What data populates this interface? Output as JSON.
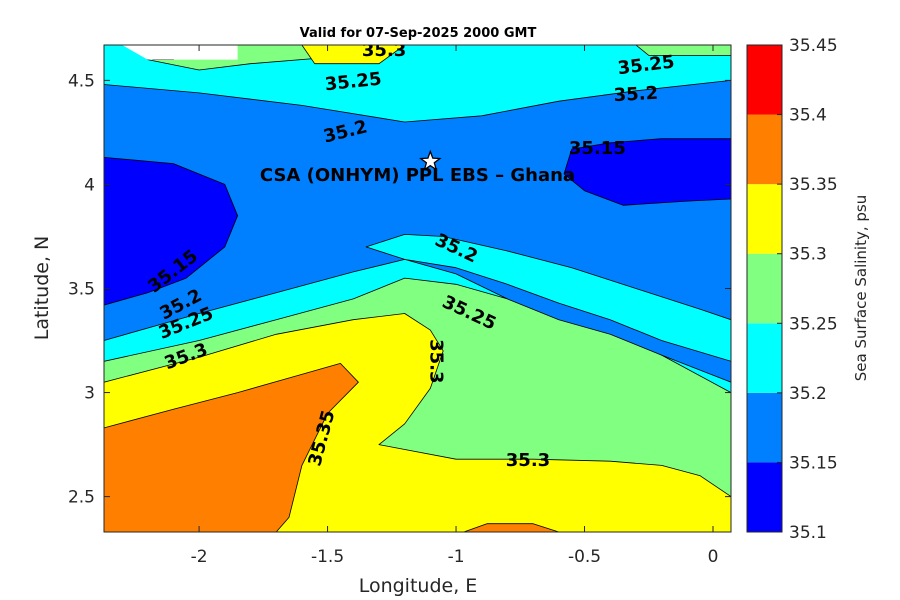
{
  "chart_data": {
    "type": "heatmap",
    "subtype": "filled-contour",
    "title": "Valid for 07-Sep-2025 2000 GMT",
    "xlabel": "Longitude, E",
    "ylabel": "Latitude, N",
    "xlim": [
      -2.37,
      0.07
    ],
    "ylim": [
      2.33,
      4.67
    ],
    "x_ticks": [
      -2,
      -1.5,
      -1,
      -0.5,
      0
    ],
    "x_tick_labels": [
      "-2",
      "-1.5",
      "-1",
      "-0.5",
      "0"
    ],
    "y_ticks": [
      2.5,
      3,
      3.5,
      4,
      4.5
    ],
    "y_tick_labels": [
      "2.5",
      "3",
      "3.5",
      "4",
      "4.5"
    ],
    "grid": false,
    "colorbar": {
      "label": "Sea Surface Salinity, psu",
      "ticks": [
        35.1,
        35.15,
        35.2,
        35.25,
        35.3,
        35.35,
        35.4,
        35.45
      ],
      "tick_labels": [
        "35.1",
        "35.15",
        "35.2",
        "35.25",
        "35.3",
        "35.35",
        "35.4",
        "35.45"
      ],
      "levels": [
        {
          "from": 35.1,
          "to": 35.15,
          "color": "#0000ff"
        },
        {
          "from": 35.15,
          "to": 35.2,
          "color": "#0080ff"
        },
        {
          "from": 35.2,
          "to": 35.25,
          "color": "#00ffff"
        },
        {
          "from": 35.25,
          "to": 35.3,
          "color": "#80ff80"
        },
        {
          "from": 35.3,
          "to": 35.35,
          "color": "#ffff00"
        },
        {
          "from": 35.35,
          "to": 35.4,
          "color": "#ff8000"
        },
        {
          "from": 35.4,
          "to": 35.45,
          "color": "#ff0000"
        }
      ]
    },
    "regions": [
      {
        "level": 35.2,
        "color": "#00ffff",
        "points": [
          [
            -2.37,
            4.67
          ],
          [
            0.07,
            4.67
          ],
          [
            0.07,
            2.33
          ],
          [
            -2.37,
            2.33
          ]
        ]
      },
      {
        "level": 35.25,
        "color": "#80ff80",
        "points": [
          [
            -2.2,
            4.67
          ],
          [
            -1.2,
            4.67
          ],
          [
            -1.4,
            4.62
          ],
          [
            -1.8,
            4.58
          ],
          [
            -2.0,
            4.55
          ],
          [
            -2.2,
            4.6
          ]
        ]
      },
      {
        "level": 35.25,
        "color": "#80ff80",
        "points": [
          [
            -0.3,
            4.67
          ],
          [
            0.07,
            4.67
          ],
          [
            0.07,
            4.62
          ],
          [
            -0.25,
            4.62
          ]
        ]
      },
      {
        "level": 35.25,
        "color": "#80ff80",
        "points": [
          [
            -2.37,
            3.15
          ],
          [
            -2.0,
            3.25
          ],
          [
            -1.7,
            3.35
          ],
          [
            -1.4,
            3.45
          ],
          [
            -1.2,
            3.55
          ],
          [
            -1.0,
            3.52
          ],
          [
            -0.8,
            3.45
          ],
          [
            -0.6,
            3.38
          ],
          [
            -0.4,
            3.3
          ],
          [
            -0.2,
            3.18
          ],
          [
            0.07,
            3.0
          ],
          [
            0.07,
            2.33
          ],
          [
            -2.37,
            2.33
          ]
        ]
      },
      {
        "level": 35.3,
        "color": "#ffff00",
        "points": [
          [
            -1.6,
            4.67
          ],
          [
            -1.2,
            4.67
          ],
          [
            -1.3,
            4.58
          ],
          [
            -1.55,
            4.58
          ]
        ]
      },
      {
        "level": 35.3,
        "color": "#ffff00",
        "points": [
          [
            -2.37,
            3.05
          ],
          [
            -2.0,
            3.17
          ],
          [
            -1.7,
            3.28
          ],
          [
            -1.4,
            3.35
          ],
          [
            -1.2,
            3.38
          ],
          [
            -1.1,
            3.3
          ],
          [
            -1.05,
            3.2
          ],
          [
            -1.1,
            3.02
          ],
          [
            -1.2,
            2.85
          ],
          [
            -1.3,
            2.75
          ],
          [
            -1.0,
            2.68
          ],
          [
            -0.7,
            2.68
          ],
          [
            -0.4,
            2.67
          ],
          [
            -0.2,
            2.65
          ],
          [
            -0.05,
            2.6
          ],
          [
            0.07,
            2.5
          ],
          [
            0.07,
            2.33
          ],
          [
            -2.37,
            2.33
          ]
        ]
      },
      {
        "level": 35.35,
        "color": "#ff8000",
        "points": [
          [
            -2.37,
            2.83
          ],
          [
            -2.1,
            2.92
          ],
          [
            -1.85,
            3.0
          ],
          [
            -1.65,
            3.07
          ],
          [
            -1.45,
            3.14
          ],
          [
            -1.38,
            3.05
          ],
          [
            -1.5,
            2.9
          ],
          [
            -1.6,
            2.65
          ],
          [
            -1.65,
            2.4
          ],
          [
            -1.7,
            2.33
          ],
          [
            -2.37,
            2.33
          ]
        ]
      },
      {
        "level": 35.35,
        "color": "#ff8000",
        "points": [
          [
            -0.97,
            2.33
          ],
          [
            -0.88,
            2.37
          ],
          [
            -0.7,
            2.37
          ],
          [
            -0.6,
            2.33
          ]
        ]
      },
      {
        "level": 35.15,
        "color": "#0080ff",
        "points": [
          [
            -2.37,
            4.48
          ],
          [
            -2.0,
            4.44
          ],
          [
            -1.6,
            4.38
          ],
          [
            -1.2,
            4.3
          ],
          [
            -0.9,
            4.33
          ],
          [
            -0.6,
            4.4
          ],
          [
            -0.3,
            4.45
          ],
          [
            0.07,
            4.5
          ],
          [
            0.07,
            3.05
          ],
          [
            -0.2,
            3.18
          ],
          [
            -0.4,
            3.28
          ],
          [
            -0.6,
            3.35
          ],
          [
            -0.8,
            3.45
          ],
          [
            -1.0,
            3.57
          ],
          [
            -1.2,
            3.64
          ],
          [
            -1.4,
            3.58
          ],
          [
            -1.7,
            3.48
          ],
          [
            -2.0,
            3.38
          ],
          [
            -2.37,
            3.25
          ]
        ]
      },
      {
        "level": 35.2,
        "color": "#00ffff",
        "points": [
          [
            -1.05,
            3.75
          ],
          [
            -0.8,
            3.68
          ],
          [
            -0.55,
            3.6
          ],
          [
            -0.3,
            3.5
          ],
          [
            -0.05,
            3.4
          ],
          [
            0.07,
            3.35
          ],
          [
            0.07,
            3.15
          ],
          [
            -0.2,
            3.25
          ],
          [
            -0.4,
            3.35
          ],
          [
            -0.6,
            3.43
          ],
          [
            -0.8,
            3.52
          ],
          [
            -1.0,
            3.6
          ],
          [
            -1.2,
            3.64
          ],
          [
            -1.35,
            3.7
          ],
          [
            -1.2,
            3.76
          ]
        ]
      },
      {
        "level": 35.1,
        "color": "#0000ff",
        "points": [
          [
            -2.37,
            4.13
          ],
          [
            -2.1,
            4.1
          ],
          [
            -1.9,
            4.0
          ],
          [
            -1.85,
            3.85
          ],
          [
            -1.9,
            3.7
          ],
          [
            -2.05,
            3.55
          ],
          [
            -2.2,
            3.48
          ],
          [
            -2.37,
            3.42
          ]
        ]
      },
      {
        "level": 35.1,
        "color": "#0000ff",
        "points": [
          [
            -0.55,
            4.17
          ],
          [
            -0.4,
            4.2
          ],
          [
            -0.2,
            4.22
          ],
          [
            0.07,
            4.22
          ],
          [
            0.07,
            3.93
          ],
          [
            -0.1,
            3.92
          ],
          [
            -0.35,
            3.9
          ],
          [
            -0.5,
            3.97
          ],
          [
            -0.58,
            4.05
          ]
        ]
      },
      {
        "level": 35.15,
        "color": "#0080ff",
        "points": [
          [
            -2.2,
            4.67
          ],
          [
            -2.05,
            4.67
          ],
          [
            -2.1,
            4.6
          ],
          [
            -2.18,
            4.6
          ]
        ]
      }
    ],
    "masked_corner": [
      [
        -2.3,
        4.67
      ],
      [
        -1.85,
        4.67
      ],
      [
        -1.85,
        4.6
      ],
      [
        -2.2,
        4.6
      ]
    ],
    "contour_labels": [
      {
        "text": "35.3",
        "x": -1.28,
        "y": 4.64,
        "angle": 0
      },
      {
        "text": "35.25",
        "x": -0.26,
        "y": 4.57,
        "angle": -7
      },
      {
        "text": "35.25",
        "x": -1.4,
        "y": 4.49,
        "angle": -6
      },
      {
        "text": "35.2",
        "x": -0.3,
        "y": 4.43,
        "angle": -3
      },
      {
        "text": "35.2",
        "x": -1.43,
        "y": 4.25,
        "angle": -14
      },
      {
        "text": "35.15",
        "x": -0.45,
        "y": 4.17,
        "angle": 0
      },
      {
        "text": "35.2",
        "x": -1.0,
        "y": 3.69,
        "angle": 25
      },
      {
        "text": "35.25",
        "x": -0.95,
        "y": 3.38,
        "angle": 25
      },
      {
        "text": "35.15",
        "x": -2.1,
        "y": 3.58,
        "angle": -38
      },
      {
        "text": "35.2",
        "x": -2.07,
        "y": 3.42,
        "angle": -28
      },
      {
        "text": "35.25",
        "x": -2.05,
        "y": 3.33,
        "angle": -22
      },
      {
        "text": "35.3",
        "x": -2.05,
        "y": 3.17,
        "angle": -20
      },
      {
        "text": "35.3",
        "x": -1.08,
        "y": 3.15,
        "angle": 90
      },
      {
        "text": "35.35",
        "x": -1.52,
        "y": 2.78,
        "angle": -75
      },
      {
        "text": "35.3",
        "x": -0.72,
        "y": 2.67,
        "angle": 0
      }
    ],
    "marker": {
      "x": -1.1,
      "y": 4.11,
      "symbol": "star"
    },
    "annotation": {
      "text": "CSA (ONHYM) PPL EBS  – Ghana",
      "x": -1.15,
      "y": 4.04
    }
  }
}
